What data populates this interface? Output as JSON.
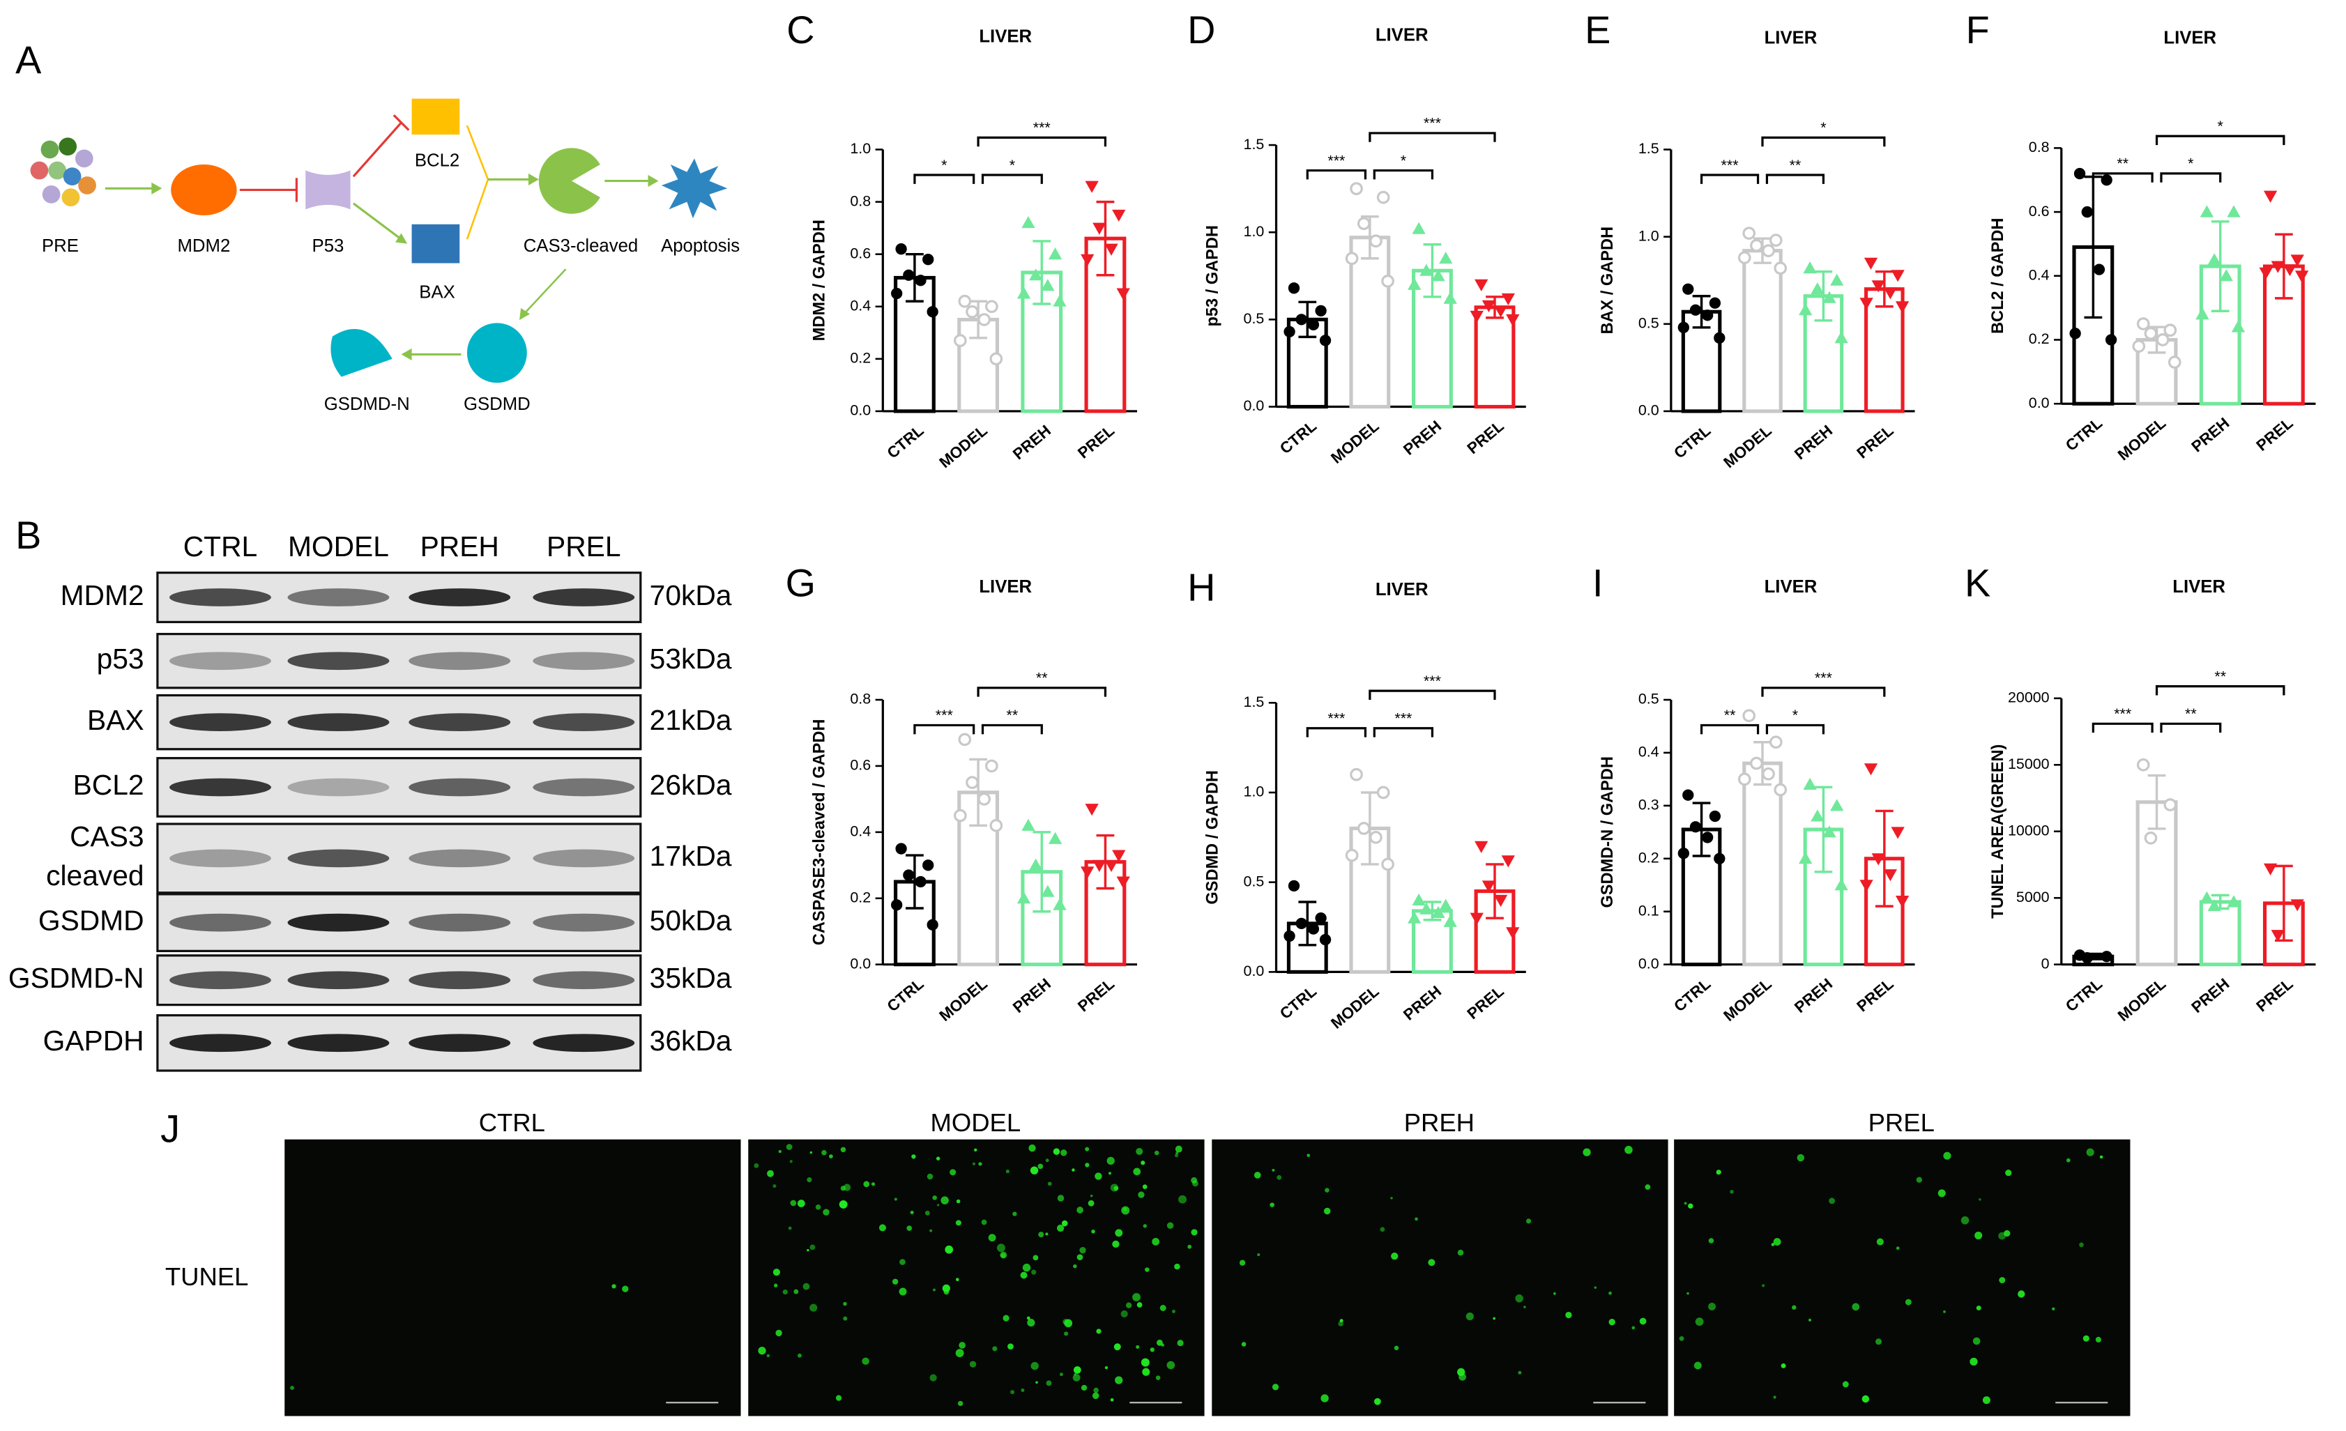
{
  "diagram": {
    "label": "A",
    "nodes": [
      "PRE",
      "MDM2",
      "P53",
      "BCL2",
      "BAX",
      "CAS3-cleaved",
      "Apoptosis",
      "GSDMD",
      "GSDMD-N"
    ]
  },
  "blot": {
    "label": "B",
    "columns": [
      "CTRL",
      "MODEL",
      "PREH",
      "PREL"
    ],
    "rows": [
      {
        "name": "MDM2",
        "size": "70kDa"
      },
      {
        "name": "p53",
        "size": "53kDa"
      },
      {
        "name": "BAX",
        "size": "21kDa"
      },
      {
        "name": "BCL2",
        "size": "26kDa"
      },
      {
        "name": [
          "CAS3",
          "cleaved"
        ],
        "size": "17kDa"
      },
      {
        "name": "GSDMD",
        "size": "50kDa"
      },
      {
        "name": "GSDMD-N",
        "size": "35kDa"
      },
      {
        "name": "GAPDH",
        "size": "36kDa"
      }
    ]
  },
  "tunel": {
    "label": "J",
    "row_label": "TUNEL",
    "columns": [
      "CTRL",
      "MODEL",
      "PREH",
      "PREL"
    ]
  },
  "chart_data": [
    {
      "type": "bar",
      "label": "C",
      "title": "LIVER",
      "ylabel": "MDM2 / GAPDH",
      "categories": [
        "CTRL",
        "MODEL",
        "PREH",
        "PREL"
      ],
      "colors": [
        "#000000",
        "#c8c8c8",
        "#6fe89a",
        "#ee1c25"
      ],
      "values": [
        0.51,
        0.35,
        0.53,
        0.66
      ],
      "errors": [
        0.09,
        0.07,
        0.12,
        0.14
      ],
      "points": [
        [
          0.62,
          0.58,
          0.52,
          0.5,
          0.45,
          0.38
        ],
        [
          0.42,
          0.4,
          0.38,
          0.35,
          0.27,
          0.2
        ],
        [
          0.72,
          0.6,
          0.52,
          0.48,
          0.45,
          0.42
        ],
        [
          0.86,
          0.75,
          0.7,
          0.62,
          0.58,
          0.45
        ]
      ],
      "ylim": [
        0,
        1
      ],
      "yticks": [
        {
          "value": 0,
          "label": "0.0"
        },
        0.2,
        0.4,
        0.6,
        0.8,
        {
          "value": 1,
          "label": "1.0"
        }
      ],
      "significance": [
        {
          "groups": [
            "CTRL",
            "MODEL"
          ],
          "label": "*"
        },
        {
          "groups": [
            "MODEL",
            "PREH"
          ],
          "label": "*"
        },
        {
          "groups": [
            "MODEL",
            "PREL"
          ],
          "label": "***"
        }
      ]
    },
    {
      "type": "bar",
      "label": "D",
      "title": "LIVER",
      "ylabel": "p53 / GAPDH",
      "categories": [
        "CTRL",
        "MODEL",
        "PREH",
        "PREL"
      ],
      "colors": [
        "#000000",
        "#c8c8c8",
        "#6fe89a",
        "#ee1c25"
      ],
      "values": [
        0.5,
        0.97,
        0.78,
        0.57
      ],
      "errors": [
        0.1,
        0.12,
        0.15,
        0.06
      ],
      "points": [
        [
          0.68,
          0.55,
          0.5,
          0.47,
          0.43,
          0.38
        ],
        [
          1.25,
          1.2,
          1.05,
          0.95,
          0.85,
          0.72
        ],
        [
          1.02,
          0.85,
          0.78,
          0.75,
          0.7,
          0.62
        ],
        [
          0.7,
          0.62,
          0.58,
          0.55,
          0.52,
          0.5
        ]
      ],
      "ylim": [
        0,
        1.5
      ],
      "yticks": [
        {
          "value": 0,
          "label": "0.0"
        },
        0.5,
        {
          "value": 1,
          "label": "1.0"
        },
        1.5
      ],
      "significance": [
        {
          "groups": [
            "CTRL",
            "MODEL"
          ],
          "label": "***"
        },
        {
          "groups": [
            "MODEL",
            "PREH"
          ],
          "label": "*"
        },
        {
          "groups": [
            "MODEL",
            "PREL"
          ],
          "label": "***"
        }
      ]
    },
    {
      "type": "bar",
      "label": "E",
      "title": "LIVER",
      "ylabel": "BAX / GAPDH",
      "categories": [
        "CTRL",
        "MODEL",
        "PREH",
        "PREL"
      ],
      "colors": [
        "#000000",
        "#c8c8c8",
        "#6fe89a",
        "#ee1c25"
      ],
      "values": [
        0.57,
        0.92,
        0.66,
        0.7
      ],
      "errors": [
        0.09,
        0.07,
        0.14,
        0.1
      ],
      "points": [
        [
          0.7,
          0.62,
          0.58,
          0.55,
          0.48,
          0.42
        ],
        [
          1.02,
          0.98,
          0.95,
          0.92,
          0.88,
          0.82
        ],
        [
          0.82,
          0.75,
          0.7,
          0.65,
          0.58,
          0.42
        ],
        [
          0.85,
          0.78,
          0.72,
          0.68,
          0.62,
          0.6
        ]
      ],
      "ylim": [
        0,
        1.5
      ],
      "yticks": [
        {
          "value": 0,
          "label": "0.0"
        },
        0.5,
        {
          "value": 1,
          "label": "1.0"
        },
        1.5
      ],
      "significance": [
        {
          "groups": [
            "CTRL",
            "MODEL"
          ],
          "label": "***"
        },
        {
          "groups": [
            "MODEL",
            "PREH"
          ],
          "label": "**"
        },
        {
          "groups": [
            "MODEL",
            "PREL"
          ],
          "label": "*"
        }
      ]
    },
    {
      "type": "bar",
      "label": "F",
      "title": "LIVER",
      "ylabel": "BCL2 / GAPDH",
      "categories": [
        "CTRL",
        "MODEL",
        "PREH",
        "PREL"
      ],
      "colors": [
        "#000000",
        "#c8c8c8",
        "#6fe89a",
        "#ee1c25"
      ],
      "values": [
        0.49,
        0.2,
        0.43,
        0.43
      ],
      "errors": [
        0.22,
        0.04,
        0.14,
        0.1
      ],
      "points": [
        [
          0.72,
          0.7,
          0.6,
          0.42,
          0.22,
          0.2
        ],
        [
          0.25,
          0.23,
          0.22,
          0.2,
          0.18,
          0.13
        ],
        [
          0.6,
          0.6,
          0.45,
          0.4,
          0.28,
          0.24
        ],
        [
          0.65,
          0.45,
          0.43,
          0.42,
          0.41,
          0.4
        ]
      ],
      "ylim": [
        0,
        0.8
      ],
      "yticks": [
        {
          "value": 0,
          "label": "0.0"
        },
        0.2,
        0.4,
        0.6,
        0.8
      ],
      "significance": [
        {
          "groups": [
            "CTRL",
            "MODEL"
          ],
          "label": "**"
        },
        {
          "groups": [
            "MODEL",
            "PREH"
          ],
          "label": "*"
        },
        {
          "groups": [
            "MODEL",
            "PREL"
          ],
          "label": "*"
        }
      ]
    },
    {
      "type": "bar",
      "label": "G",
      "title": "LIVER",
      "ylabel": "CASPASE3-cleaved / GAPDH",
      "categories": [
        "CTRL",
        "MODEL",
        "PREH",
        "PREL"
      ],
      "colors": [
        "#000000",
        "#c8c8c8",
        "#6fe89a",
        "#ee1c25"
      ],
      "values": [
        0.25,
        0.52,
        0.28,
        0.31
      ],
      "errors": [
        0.08,
        0.1,
        0.12,
        0.08
      ],
      "points": [
        [
          0.35,
          0.3,
          0.27,
          0.25,
          0.18,
          0.12
        ],
        [
          0.68,
          0.6,
          0.55,
          0.5,
          0.45,
          0.42
        ],
        [
          0.42,
          0.38,
          0.3,
          0.22,
          0.2,
          0.18
        ],
        [
          0.47,
          0.33,
          0.3,
          0.3,
          0.28,
          0.25
        ]
      ],
      "ylim": [
        0,
        0.8
      ],
      "yticks": [
        {
          "value": 0,
          "label": "0.0"
        },
        0.2,
        0.4,
        0.6,
        0.8
      ],
      "significance": [
        {
          "groups": [
            "CTRL",
            "MODEL"
          ],
          "label": "***"
        },
        {
          "groups": [
            "MODEL",
            "PREH"
          ],
          "label": "**"
        },
        {
          "groups": [
            "MODEL",
            "PREL"
          ],
          "label": "**"
        }
      ]
    },
    {
      "type": "bar",
      "label": "H",
      "title": "LIVER",
      "ylabel": "GSDMD / GAPDH",
      "categories": [
        "CTRL",
        "MODEL",
        "PREH",
        "PREL"
      ],
      "colors": [
        "#000000",
        "#c8c8c8",
        "#6fe89a",
        "#ee1c25"
      ],
      "values": [
        0.27,
        0.8,
        0.34,
        0.45
      ],
      "errors": [
        0.12,
        0.2,
        0.05,
        0.15
      ],
      "points": [
        [
          0.48,
          0.3,
          0.27,
          0.24,
          0.2,
          0.18
        ],
        [
          1.1,
          1.0,
          0.8,
          0.75,
          0.65,
          0.6
        ],
        [
          0.4,
          0.37,
          0.35,
          0.33,
          0.3,
          0.28
        ],
        [
          0.7,
          0.62,
          0.48,
          0.4,
          0.3,
          0.22
        ]
      ],
      "ylim": [
        0,
        1.5
      ],
      "yticks": [
        {
          "value": 0,
          "label": "0.0"
        },
        0.5,
        {
          "value": 1,
          "label": "1.0"
        },
        1.5
      ],
      "significance": [
        {
          "groups": [
            "CTRL",
            "MODEL"
          ],
          "label": "***"
        },
        {
          "groups": [
            "MODEL",
            "PREH"
          ],
          "label": "***"
        },
        {
          "groups": [
            "MODEL",
            "PREL"
          ],
          "label": "***"
        }
      ]
    },
    {
      "type": "bar",
      "label": "I",
      "title": "LIVER",
      "ylabel": "GSDMD-N / GAPDH",
      "categories": [
        "CTRL",
        "MODEL",
        "PREH",
        "PREL"
      ],
      "colors": [
        "#000000",
        "#c8c8c8",
        "#6fe89a",
        "#ee1c25"
      ],
      "values": [
        0.255,
        0.38,
        0.255,
        0.2
      ],
      "errors": [
        0.05,
        0.04,
        0.08,
        0.09
      ],
      "points": [
        [
          0.32,
          0.28,
          0.26,
          0.24,
          0.21,
          0.2
        ],
        [
          0.47,
          0.42,
          0.38,
          0.36,
          0.35,
          0.33
        ],
        [
          0.34,
          0.3,
          0.28,
          0.25,
          0.2,
          0.15
        ],
        [
          0.37,
          0.25,
          0.2,
          0.17,
          0.15,
          0.12
        ]
      ],
      "ylim": [
        0,
        0.5
      ],
      "yticks": [
        {
          "value": 0,
          "label": "0.0"
        },
        0.1,
        0.2,
        0.3,
        0.4,
        0.5
      ],
      "significance": [
        {
          "groups": [
            "CTRL",
            "MODEL"
          ],
          "label": "**"
        },
        {
          "groups": [
            "MODEL",
            "PREH"
          ],
          "label": "*"
        },
        {
          "groups": [
            "MODEL",
            "PREL"
          ],
          "label": "***"
        }
      ]
    },
    {
      "type": "bar",
      "label": "K",
      "title": "LIVER",
      "ylabel": "TUNEL AREA(GREEN)",
      "categories": [
        "CTRL",
        "MODEL",
        "PREH",
        "PREL"
      ],
      "colors": [
        "#000000",
        "#c8c8c8",
        "#6fe89a",
        "#ee1c25"
      ],
      "values": [
        600,
        12200,
        4700,
        4600
      ],
      "errors": [
        200,
        2000,
        500,
        2800
      ],
      "points": [
        [
          700,
          600,
          500
        ],
        [
          15000,
          12000,
          9500
        ],
        [
          5000,
          4700,
          4400
        ],
        [
          7200,
          4500,
          2200
        ]
      ],
      "ylim": [
        0,
        20000
      ],
      "yticks": [
        0,
        5000,
        10000,
        15000,
        20000
      ],
      "significance": [
        {
          "groups": [
            "CTRL",
            "MODEL"
          ],
          "label": "***"
        },
        {
          "groups": [
            "MODEL",
            "PREH"
          ],
          "label": "**"
        },
        {
          "groups": [
            "MODEL",
            "PREL"
          ],
          "label": "**"
        }
      ]
    }
  ]
}
